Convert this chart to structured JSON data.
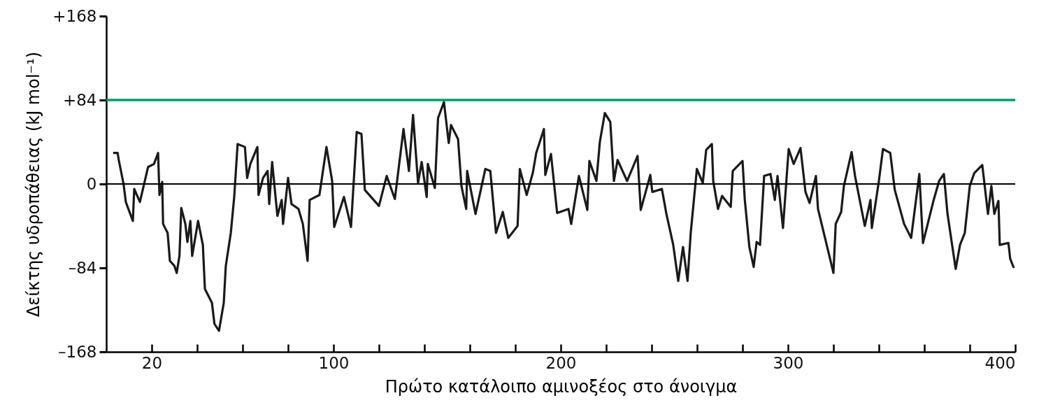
{
  "chart_data": {
    "type": "line",
    "xlabel": "Πρώτο κατάλοιπο αμινοξέος στο άνοιγμα",
    "ylabel": "Δείκτης υδροπάθειας (kJ mol⁻¹)",
    "xlim": [
      0,
      400
    ],
    "ylim": [
      -168,
      168
    ],
    "xticks": [
      20,
      {
        "value": 40,
        "label": null
      },
      {
        "value": 60,
        "label": null
      },
      {
        "value": 80,
        "label": null
      },
      100,
      {
        "value": 120,
        "label": null
      },
      {
        "value": 140,
        "label": null
      },
      {
        "value": 160,
        "label": null
      },
      {
        "value": 180,
        "label": null
      },
      200,
      {
        "value": 220,
        "label": null
      },
      {
        "value": 240,
        "label": null
      },
      {
        "value": 260,
        "label": null
      },
      {
        "value": 280,
        "label": null
      },
      300,
      {
        "value": 320,
        "label": null
      },
      {
        "value": 340,
        "label": null
      },
      {
        "value": 360,
        "label": null
      },
      {
        "value": 380,
        "label": null
      },
      400
    ],
    "yticks": [
      {
        "value": 168,
        "label": "+168"
      },
      {
        "value": 84,
        "label": "+84"
      },
      0,
      {
        "value": -84,
        "label": "–84"
      },
      {
        "value": -168,
        "label": "–168"
      }
    ],
    "grid": false,
    "ref_lines": [
      {
        "axis": "y",
        "value": 84,
        "color": "#00a06e"
      },
      {
        "axis": "y",
        "value": 0,
        "color": "#000000"
      }
    ],
    "series": [
      {
        "color": "#1a1a1a",
        "x": [
          3,
          5,
          5.5,
          7.6,
          8.6,
          11.7,
          12.3,
          14.8,
          18.4,
          21,
          22.8,
          23.4,
          24.6,
          25,
          27,
          28,
          30,
          31,
          32.2,
          33,
          34.8,
          35.7,
          37,
          37.8,
          40.4,
          42.5,
          43.4,
          46.5,
          47.6,
          49.6,
          51.7,
          52.6,
          54.8,
          56.3,
          57.8,
          61,
          62,
          63.4,
          66.5,
          67,
          69,
          71,
          71.7,
          73,
          75.3,
          77.2,
          77.8,
          80,
          81.5,
          84.6,
          86.5,
          88.6,
          89.5,
          93.8,
          96.9,
          99.4,
          100.3,
          104.6,
          107.7,
          110.2,
          112.3,
          113.8,
          120,
          123.4,
          127,
          130.8,
          133.2,
          135,
          137.2,
          138.8,
          141,
          141.5,
          144.6,
          146,
          148.6,
          150.7,
          151.7,
          154.8,
          156.3,
          158.4,
          158.8,
          162.5,
          166.8,
          169,
          171.5,
          174.5,
          176.9,
          181,
          182,
          185,
          187.7,
          189.2,
          192.6,
          193.2,
          195.7,
          198.4,
          203.4,
          204.6,
          208,
          211.7,
          212.6,
          215.7,
          217.2,
          219.4,
          221.8,
          223.4,
          225,
          229.2,
          233.8,
          235.2,
          239.4,
          240.3,
          244.5,
          246.5,
          249.5,
          251.7,
          253.8,
          255.8,
          257.2,
          258.8,
          259.9,
          262.5,
          264,
          266.5,
          267.1,
          269.2,
          271,
          274.8,
          275.7,
          280,
          281,
          283,
          284.9,
          286.2,
          287.7,
          289.5,
          292.3,
          294.2,
          295.4,
          297.8,
          300.3,
          302.5,
          305.5,
          307.7,
          309.5,
          312.3,
          313.2,
          316.3,
          320,
          321,
          323.4,
          324.6,
          328,
          329.5,
          333.8,
          336.3,
          336.9,
          340,
          341.8,
          345,
          347,
          351.1,
          354.2,
          357.8,
          359.4,
          364,
          366.5,
          368.6,
          370.2,
          373.8,
          375.7,
          377.8,
          380,
          382,
          385.5,
          388,
          389.5,
          390.8,
          392.6,
          393.2,
          397,
          397.8,
          399.4
        ],
        "values": [
          31,
          31,
          24,
          0,
          -18,
          -37,
          -5,
          -18,
          17,
          20,
          31,
          -11,
          2,
          -40,
          -49,
          -77,
          -82,
          -89,
          -72,
          -24,
          -40,
          -58,
          -37,
          -72,
          -37,
          -61,
          -105,
          -119,
          -140,
          -147,
          -119,
          -82,
          -49,
          -13,
          40,
          37,
          6,
          20,
          37,
          -11,
          6,
          13,
          -20,
          22,
          -32,
          -16,
          -40,
          6,
          -20,
          -25,
          -40,
          -77,
          -16,
          -11,
          37,
          3,
          -43,
          -13,
          -43,
          52,
          50,
          -6,
          -22,
          8,
          -15,
          55,
          13,
          69,
          1,
          22,
          -13,
          20,
          -4,
          66,
          82,
          41,
          59,
          45,
          -2,
          -25,
          13,
          -30,
          15,
          13,
          -49,
          -28,
          -54,
          -42,
          15,
          -11,
          11,
          31,
          55,
          9,
          30,
          -29,
          -25,
          -40,
          8,
          -26,
          23,
          3,
          42,
          71,
          62,
          3,
          24,
          3,
          28,
          -26,
          9,
          -8,
          -5,
          -30,
          -61,
          -97,
          -63,
          -97,
          -49,
          -11,
          15,
          1,
          34,
          40,
          3,
          -25,
          -12,
          -23,
          13,
          23,
          -16,
          -63,
          -83,
          -58,
          -61,
          8,
          10,
          -16,
          8,
          -44,
          35,
          20,
          36,
          -8,
          -19,
          8,
          -25,
          -54,
          -89,
          -40,
          -28,
          -2,
          32,
          8,
          -42,
          -16,
          -44,
          3,
          35,
          31,
          -6,
          -40,
          -54,
          10,
          -59,
          -17,
          3,
          10,
          -30,
          -85,
          -61,
          -49,
          -2,
          11,
          19,
          -30,
          -2,
          -30,
          -17,
          -61,
          -59,
          -75,
          -84
        ]
      }
    ]
  }
}
